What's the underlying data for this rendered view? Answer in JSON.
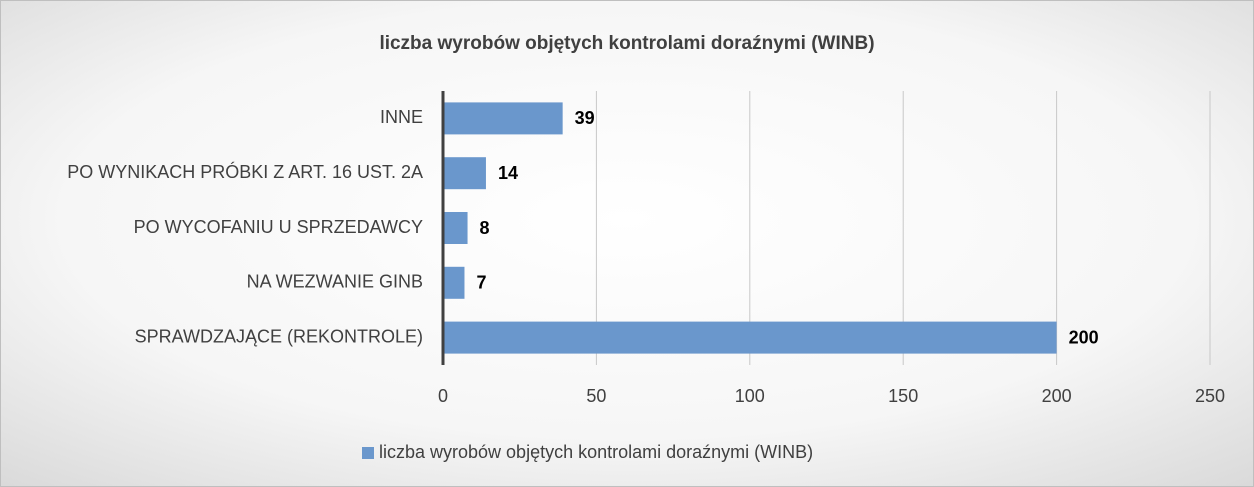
{
  "chart_data": {
    "type": "barh",
    "title": "liczba wyrobów objętych kontrolami doraźnymi (WINB)",
    "categories": [
      "INNE",
      "PO WYNIKACH PRÓBKI Z ART. 16 UST. 2A",
      "PO WYCOFANIU U SPRZEDAWCY",
      "NA WEZWANIE GINB",
      "SPRAWDZAJĄCE (REKONTROLE)"
    ],
    "series": [
      {
        "name": "liczba wyrobów objętych kontrolami doraźnymi (WINB)",
        "color": "#6a97cc",
        "values": [
          39,
          14,
          8,
          7,
          200
        ]
      }
    ],
    "xlim": [
      0,
      250
    ],
    "xticks": [
      0,
      50,
      100,
      150,
      200,
      250
    ],
    "grid": true,
    "legend": "bottom"
  }
}
